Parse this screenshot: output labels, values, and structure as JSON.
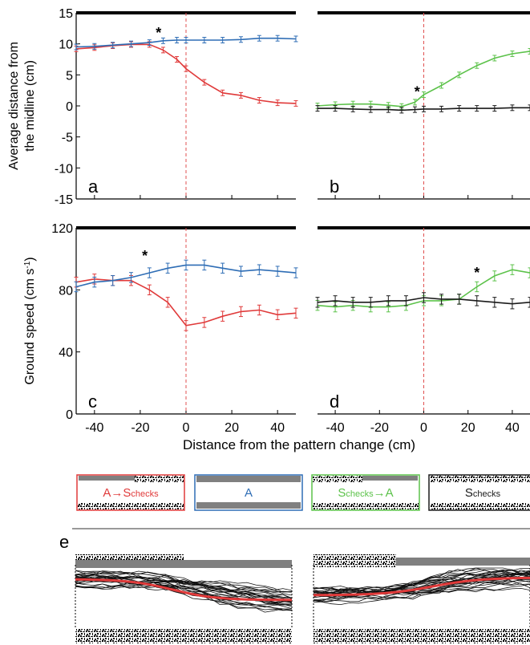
{
  "colors": {
    "red": "#e03a3a",
    "blue": "#2e6db5",
    "green": "#5cc24a",
    "black": "#1a1a1a",
    "midline": "#e05050"
  },
  "axes": {
    "top_ylabel_line1": "Average distance from",
    "top_ylabel_line2": "the midline (cm)",
    "mid_ylabel": "Ground speed (cm s",
    "mid_ylabel_sup": "-1",
    "mid_ylabel_close": ")",
    "xlabel": "Distance from the pattern change (cm)",
    "top_yticks": [
      "15",
      "10",
      "5",
      "0",
      "-5",
      "-10",
      "-15"
    ],
    "mid_yticks": [
      "120",
      "80",
      "40",
      "0"
    ],
    "xticks": [
      "-40",
      "-20",
      "0",
      "20",
      "40"
    ]
  },
  "panel_labels": {
    "a": "a",
    "b": "b",
    "c": "c",
    "d": "d",
    "e": "e"
  },
  "significance_mark": "*",
  "legend": [
    {
      "key": "a_to_s",
      "text_main": "A→S",
      "text_sub": "checks",
      "color": "#e03a3a"
    },
    {
      "key": "a",
      "text_main": "A",
      "text_sub": "",
      "color": "#2e6db5"
    },
    {
      "key": "s_to_a",
      "text_main": "S",
      "text_sub": "checks",
      "text_tail": "→A",
      "color": "#5cc24a"
    },
    {
      "key": "s",
      "text_main": "S",
      "text_sub": "checks",
      "color": "#1a1a1a"
    }
  ],
  "chart_data": [
    {
      "panel": "a",
      "type": "line",
      "xlim": [
        -48,
        48
      ],
      "ylim": [
        -15,
        15
      ],
      "x": [
        -48,
        -40,
        -32,
        -24,
        -16,
        -10,
        -4,
        0,
        8,
        16,
        24,
        32,
        40,
        48
      ],
      "series": [
        {
          "color": "red",
          "values": [
            9.2,
            9.4,
            9.7,
            9.9,
            9.9,
            9.0,
            7.5,
            6.0,
            3.8,
            2.1,
            1.7,
            0.9,
            0.5,
            0.4
          ]
        },
        {
          "color": "blue",
          "values": [
            9.5,
            9.6,
            9.8,
            10.0,
            10.2,
            10.5,
            10.6,
            10.6,
            10.6,
            10.6,
            10.7,
            10.9,
            10.9,
            10.8
          ]
        }
      ],
      "midline_x": 0,
      "star": {
        "x": -12,
        "y": 12
      }
    },
    {
      "panel": "b",
      "type": "line",
      "xlim": [
        -48,
        48
      ],
      "ylim": [
        -15,
        15
      ],
      "x": [
        -48,
        -40,
        -32,
        -24,
        -16,
        -10,
        -4,
        0,
        8,
        16,
        24,
        32,
        40,
        48
      ],
      "series": [
        {
          "color": "green",
          "values": [
            0.0,
            0.2,
            0.3,
            0.3,
            0.1,
            -0.1,
            0.6,
            1.8,
            3.3,
            5.0,
            6.5,
            7.7,
            8.4,
            8.8
          ]
        },
        {
          "color": "black",
          "values": [
            -0.4,
            -0.4,
            -0.5,
            -0.6,
            -0.6,
            -0.7,
            -0.6,
            -0.5,
            -0.5,
            -0.4,
            -0.4,
            -0.4,
            -0.3,
            -0.3
          ]
        }
      ],
      "midline_x": 0,
      "star": {
        "x": -3,
        "y": 2.5
      }
    },
    {
      "panel": "c",
      "type": "line",
      "xlim": [
        -48,
        48
      ],
      "ylim": [
        0,
        120
      ],
      "x": [
        -48,
        -40,
        -32,
        -24,
        -16,
        -8,
        0,
        8,
        16,
        24,
        32,
        40,
        48
      ],
      "series": [
        {
          "color": "red",
          "values": [
            85,
            87,
            86,
            86,
            80,
            72,
            57,
            59,
            63,
            66,
            67,
            64,
            65
          ]
        },
        {
          "color": "blue",
          "values": [
            82,
            85,
            86,
            88,
            91,
            94,
            96,
            96,
            94,
            92,
            93,
            92,
            91
          ]
        }
      ],
      "midline_x": 0,
      "star": {
        "x": -18,
        "y": 103
      }
    },
    {
      "panel": "d",
      "type": "line",
      "xlim": [
        -48,
        48
      ],
      "ylim": [
        0,
        120
      ],
      "x": [
        -48,
        -40,
        -32,
        -24,
        -16,
        -8,
        0,
        8,
        16,
        24,
        32,
        40,
        48
      ],
      "series": [
        {
          "color": "green",
          "values": [
            70,
            69,
            70,
            69,
            69,
            70,
            73,
            73,
            74,
            82,
            89,
            93,
            91
          ]
        },
        {
          "color": "black",
          "values": [
            72,
            73,
            72,
            72,
            73,
            73,
            75,
            74,
            74,
            73,
            72,
            71,
            72
          ]
        }
      ],
      "midline_x": 0,
      "star": {
        "x": 24,
        "y": 92
      }
    }
  ]
}
